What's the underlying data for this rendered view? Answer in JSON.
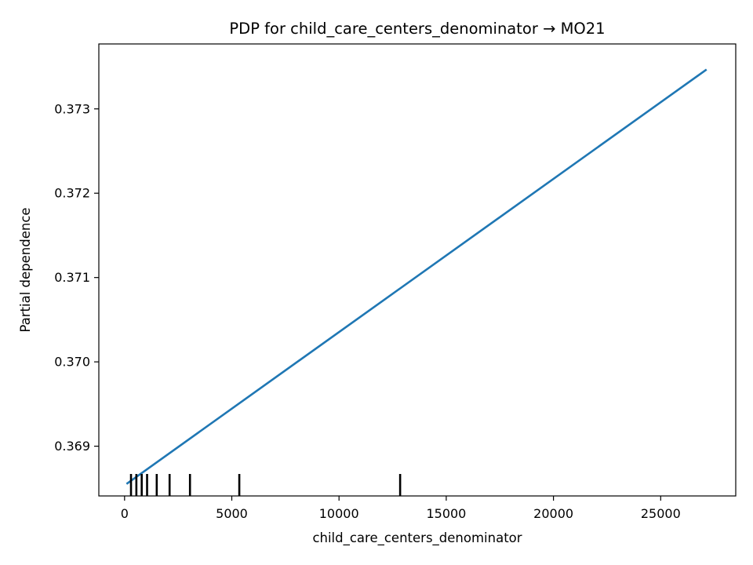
{
  "chart_data": {
    "type": "line",
    "title": "PDP for child_care_centers_denominator → MO21",
    "xlabel": "child_care_centers_denominator",
    "ylabel": "Partial dependence",
    "xlim": [
      -1200,
      28500
    ],
    "ylim": [
      0.36841,
      0.37377
    ],
    "xticks": [
      0,
      5000,
      10000,
      15000,
      20000,
      25000
    ],
    "xtick_labels": [
      "0",
      "5000",
      "10000",
      "15000",
      "20000",
      "25000"
    ],
    "yticks": [
      0.369,
      0.37,
      0.371,
      0.372,
      0.373
    ],
    "ytick_labels": [
      "0.369",
      "0.370",
      "0.371",
      "0.372",
      "0.373"
    ],
    "grid": false,
    "legend": "none",
    "series": [
      {
        "x": [
          130,
          27100
        ],
        "y": [
          0.36856,
          0.37346
        ],
        "color": "#1f77b4"
      }
    ],
    "rug": {
      "color": "#000000",
      "x": [
        300,
        550,
        800,
        1050,
        1500,
        2100,
        3050,
        5350,
        12850
      ]
    }
  }
}
